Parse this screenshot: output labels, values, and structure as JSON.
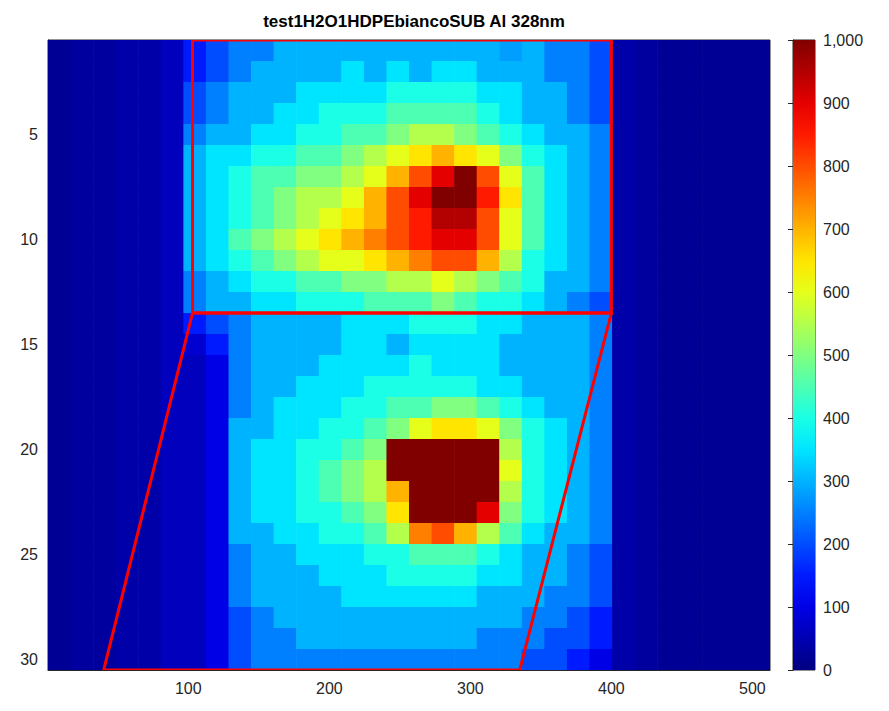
{
  "chart_data": {
    "type": "heatmap",
    "title": "test1H2O1HDPEbiancoSUB Al 328nm",
    "xlim": [
      0.5,
      512.5
    ],
    "xticks": [
      100,
      200,
      300,
      400,
      500
    ],
    "ylim": [
      0.5,
      30.5
    ],
    "yticks": [
      5,
      10,
      15,
      20,
      25,
      30
    ],
    "x_edges": [
      0.5,
      16.5,
      32.5,
      48.5,
      64.5,
      80.5,
      96.5,
      112.5,
      128.5,
      144.5,
      160.5,
      176.5,
      192.5,
      208.5,
      224.5,
      240.5,
      256.5,
      272.5,
      288.5,
      304.5,
      320.5,
      336.5,
      352.5,
      368.5,
      384.5,
      400.5,
      416.5,
      432.5,
      448.5,
      464.5,
      480.5,
      496.5,
      512.5
    ],
    "y": [
      1,
      2,
      3,
      4,
      5,
      6,
      7,
      8,
      9,
      10,
      11,
      12,
      13,
      14,
      15,
      16,
      17,
      18,
      19,
      20,
      21,
      22,
      23,
      24,
      25,
      26,
      27,
      28,
      29,
      30
    ],
    "cells": [
      [
        20,
        30,
        30,
        40,
        40,
        60,
        150,
        200,
        250,
        250,
        300,
        300,
        300,
        300,
        300,
        300,
        300,
        300,
        300,
        300,
        280,
        300,
        250,
        250,
        200,
        40,
        30,
        20,
        20,
        20,
        20,
        20
      ],
      [
        20,
        30,
        30,
        40,
        40,
        60,
        150,
        200,
        250,
        300,
        300,
        300,
        300,
        350,
        300,
        350,
        300,
        350,
        350,
        300,
        300,
        300,
        250,
        250,
        200,
        40,
        30,
        20,
        20,
        20,
        20,
        20
      ],
      [
        20,
        30,
        30,
        40,
        40,
        60,
        200,
        250,
        300,
        300,
        300,
        350,
        350,
        350,
        350,
        400,
        400,
        400,
        400,
        350,
        350,
        300,
        300,
        250,
        200,
        40,
        30,
        20,
        20,
        20,
        20,
        20
      ],
      [
        20,
        30,
        30,
        40,
        40,
        60,
        200,
        250,
        300,
        300,
        350,
        350,
        400,
        400,
        400,
        450,
        450,
        450,
        450,
        400,
        350,
        300,
        300,
        250,
        200,
        40,
        30,
        20,
        20,
        20,
        20,
        20
      ],
      [
        20,
        30,
        30,
        40,
        40,
        60,
        250,
        300,
        300,
        350,
        350,
        400,
        400,
        450,
        450,
        500,
        550,
        550,
        500,
        450,
        400,
        350,
        300,
        300,
        250,
        40,
        30,
        20,
        20,
        20,
        20,
        20
      ],
      [
        20,
        30,
        30,
        40,
        40,
        60,
        300,
        350,
        350,
        400,
        400,
        450,
        450,
        500,
        550,
        600,
        650,
        700,
        650,
        600,
        500,
        400,
        350,
        300,
        250,
        40,
        30,
        20,
        20,
        20,
        20,
        20
      ],
      [
        20,
        30,
        30,
        40,
        40,
        60,
        300,
        350,
        400,
        450,
        450,
        500,
        500,
        550,
        600,
        700,
        800,
        900,
        1000,
        800,
        600,
        450,
        350,
        300,
        250,
        40,
        30,
        20,
        20,
        20,
        20,
        20
      ],
      [
        20,
        30,
        30,
        40,
        40,
        60,
        300,
        350,
        400,
        450,
        500,
        550,
        550,
        600,
        700,
        800,
        900,
        1000,
        1000,
        850,
        650,
        450,
        350,
        300,
        250,
        40,
        30,
        20,
        20,
        20,
        20,
        20
      ],
      [
        20,
        30,
        30,
        40,
        40,
        60,
        300,
        350,
        400,
        450,
        500,
        550,
        600,
        650,
        700,
        800,
        850,
        950,
        950,
        800,
        600,
        450,
        350,
        300,
        250,
        40,
        30,
        20,
        20,
        20,
        20,
        20
      ],
      [
        20,
        30,
        30,
        40,
        40,
        60,
        300,
        350,
        450,
        500,
        550,
        600,
        650,
        700,
        750,
        800,
        850,
        900,
        900,
        800,
        600,
        450,
        350,
        300,
        250,
        40,
        30,
        20,
        20,
        20,
        20,
        20
      ],
      [
        20,
        30,
        30,
        40,
        40,
        60,
        300,
        350,
        400,
        450,
        500,
        550,
        600,
        600,
        650,
        700,
        750,
        800,
        800,
        700,
        550,
        400,
        350,
        300,
        250,
        40,
        30,
        20,
        20,
        20,
        20,
        20
      ],
      [
        20,
        30,
        30,
        40,
        40,
        60,
        250,
        300,
        350,
        400,
        400,
        450,
        450,
        500,
        500,
        550,
        550,
        600,
        550,
        500,
        450,
        400,
        300,
        300,
        250,
        40,
        30,
        20,
        20,
        20,
        20,
        20
      ],
      [
        20,
        30,
        30,
        40,
        40,
        60,
        250,
        300,
        300,
        350,
        350,
        400,
        400,
        400,
        450,
        450,
        450,
        500,
        450,
        400,
        400,
        350,
        300,
        250,
        200,
        40,
        30,
        20,
        20,
        20,
        20,
        20
      ],
      [
        20,
        30,
        30,
        40,
        40,
        60,
        150,
        200,
        250,
        300,
        300,
        300,
        300,
        350,
        350,
        350,
        400,
        400,
        400,
        350,
        350,
        300,
        300,
        300,
        250,
        40,
        30,
        20,
        20,
        20,
        20,
        20
      ],
      [
        20,
        30,
        30,
        40,
        40,
        60,
        80,
        150,
        250,
        300,
        300,
        300,
        300,
        350,
        350,
        300,
        350,
        350,
        350,
        350,
        300,
        300,
        300,
        300,
        250,
        40,
        30,
        20,
        20,
        20,
        20,
        20
      ],
      [
        20,
        30,
        30,
        40,
        40,
        60,
        60,
        100,
        250,
        300,
        300,
        300,
        350,
        350,
        350,
        350,
        400,
        350,
        350,
        350,
        300,
        300,
        300,
        300,
        250,
        40,
        30,
        20,
        20,
        20,
        20,
        20
      ],
      [
        20,
        30,
        30,
        40,
        40,
        60,
        60,
        100,
        250,
        300,
        300,
        350,
        350,
        350,
        400,
        400,
        400,
        400,
        400,
        350,
        350,
        300,
        300,
        300,
        250,
        40,
        30,
        20,
        20,
        20,
        20,
        20
      ],
      [
        20,
        30,
        30,
        40,
        40,
        60,
        60,
        100,
        250,
        300,
        350,
        350,
        350,
        400,
        400,
        450,
        450,
        500,
        500,
        450,
        400,
        350,
        300,
        300,
        250,
        40,
        30,
        20,
        20,
        20,
        20,
        20
      ],
      [
        20,
        30,
        30,
        40,
        40,
        60,
        60,
        100,
        300,
        300,
        350,
        350,
        400,
        400,
        450,
        500,
        600,
        650,
        650,
        600,
        500,
        400,
        350,
        300,
        250,
        40,
        30,
        20,
        20,
        20,
        20,
        20
      ],
      [
        20,
        30,
        30,
        40,
        40,
        60,
        60,
        100,
        300,
        350,
        350,
        400,
        400,
        450,
        500,
        1000,
        1000,
        1000,
        1000,
        1000,
        550,
        400,
        350,
        300,
        250,
        40,
        30,
        20,
        20,
        20,
        20,
        20
      ],
      [
        20,
        30,
        30,
        40,
        40,
        60,
        60,
        100,
        300,
        350,
        350,
        400,
        450,
        500,
        550,
        1000,
        1000,
        1000,
        1000,
        1000,
        600,
        400,
        350,
        300,
        250,
        40,
        30,
        20,
        20,
        20,
        20,
        20
      ],
      [
        20,
        30,
        30,
        40,
        40,
        60,
        60,
        100,
        300,
        350,
        350,
        400,
        450,
        500,
        550,
        700,
        1000,
        1000,
        1000,
        1000,
        550,
        400,
        350,
        300,
        250,
        40,
        30,
        20,
        20,
        20,
        20,
        20
      ],
      [
        20,
        30,
        30,
        40,
        40,
        60,
        60,
        100,
        300,
        350,
        350,
        400,
        400,
        450,
        500,
        650,
        1000,
        1000,
        1000,
        900,
        500,
        400,
        350,
        300,
        250,
        40,
        30,
        20,
        20,
        20,
        20,
        20
      ],
      [
        20,
        30,
        30,
        40,
        40,
        60,
        60,
        100,
        300,
        300,
        350,
        350,
        400,
        400,
        450,
        550,
        750,
        800,
        700,
        550,
        450,
        350,
        300,
        300,
        250,
        40,
        30,
        20,
        20,
        20,
        20,
        20
      ],
      [
        20,
        30,
        30,
        40,
        40,
        60,
        60,
        100,
        250,
        300,
        300,
        350,
        350,
        350,
        400,
        400,
        450,
        450,
        450,
        400,
        350,
        300,
        300,
        250,
        200,
        40,
        30,
        20,
        20,
        20,
        20,
        20
      ],
      [
        20,
        30,
        30,
        40,
        40,
        60,
        60,
        100,
        250,
        300,
        300,
        300,
        350,
        350,
        350,
        400,
        400,
        400,
        400,
        350,
        350,
        300,
        300,
        250,
        200,
        40,
        30,
        20,
        20,
        20,
        20,
        20
      ],
      [
        20,
        30,
        30,
        40,
        40,
        60,
        60,
        100,
        250,
        300,
        300,
        300,
        300,
        350,
        350,
        350,
        350,
        350,
        350,
        300,
        300,
        300,
        250,
        250,
        200,
        40,
        30,
        20,
        20,
        20,
        20,
        20
      ],
      [
        20,
        30,
        30,
        40,
        40,
        60,
        60,
        100,
        200,
        250,
        300,
        300,
        300,
        300,
        300,
        300,
        300,
        300,
        300,
        300,
        300,
        250,
        250,
        200,
        150,
        40,
        30,
        20,
        20,
        20,
        20,
        20
      ],
      [
        20,
        30,
        30,
        40,
        40,
        60,
        60,
        100,
        200,
        250,
        250,
        300,
        300,
        300,
        300,
        300,
        300,
        300,
        300,
        250,
        250,
        250,
        200,
        200,
        150,
        40,
        30,
        20,
        20,
        20,
        20,
        20
      ],
      [
        20,
        30,
        30,
        40,
        40,
        60,
        60,
        100,
        200,
        250,
        250,
        250,
        250,
        250,
        250,
        250,
        250,
        250,
        250,
        250,
        250,
        200,
        200,
        150,
        100,
        40,
        30,
        20,
        20,
        20,
        20,
        20
      ]
    ],
    "color_bar": {
      "range": [
        0,
        1000
      ],
      "ticks": [
        0,
        100,
        200,
        300,
        400,
        500,
        600,
        700,
        800,
        900,
        1000
      ]
    },
    "regions": [
      {
        "color": "#ff0000",
        "points": [
          [
            103,
            0.5
          ],
          [
            400,
            0.5
          ],
          [
            400,
            13.5
          ],
          [
            103,
            13.5
          ]
        ]
      },
      {
        "color": "#ff0000",
        "points": [
          [
            103,
            13.5
          ],
          [
            400,
            13.5
          ],
          [
            335,
            30.5
          ],
          [
            40,
            30.5
          ]
        ]
      }
    ]
  }
}
